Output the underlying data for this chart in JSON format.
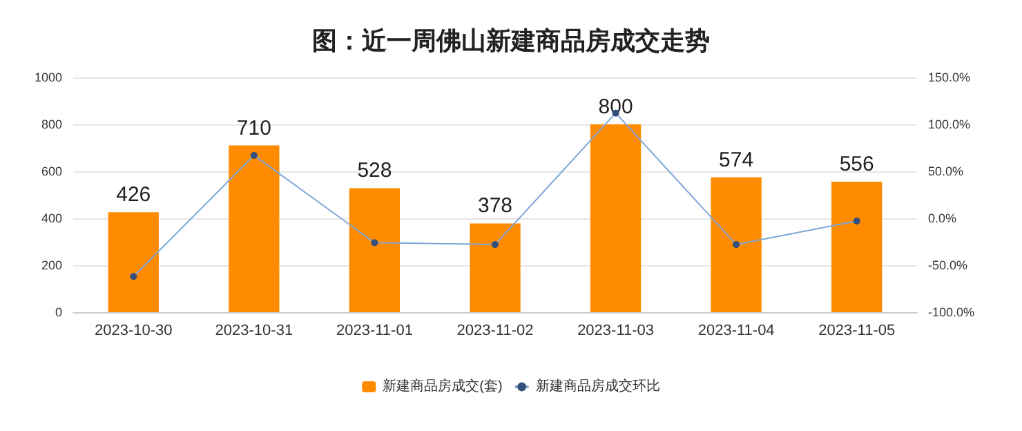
{
  "chart_data": {
    "type": "bar",
    "title": "图：近一周佛山新建商品房成交走势",
    "categories": [
      "2023-10-30",
      "2023-10-31",
      "2023-11-01",
      "2023-11-02",
      "2023-11-03",
      "2023-11-04",
      "2023-11-05"
    ],
    "series": [
      {
        "name": "新建商品房成交(套)",
        "color": "#ff8c00",
        "values": [
          426,
          710,
          528,
          378,
          800,
          574,
          556
        ],
        "data_labels": true
      },
      {
        "name": "新建商品房成交环比",
        "type": "line",
        "axis": "y2",
        "color": "#7ea6d8",
        "values": [
          -62,
          67,
          -26,
          -28,
          112,
          -28,
          -3
        ],
        "marker": "circle"
      }
    ],
    "ylim": [
      0,
      1000
    ],
    "yticks": [
      0,
      200,
      400,
      600,
      800,
      1000
    ],
    "y2lim": [
      -100,
      150
    ],
    "y2ticks": [
      {
        "value": -100,
        "label": "-100.0%"
      },
      {
        "value": -50,
        "label": "-50.0%"
      },
      {
        "value": 0,
        "label": "0.0%"
      },
      {
        "value": 50,
        "label": "50.0%"
      },
      {
        "value": 100,
        "label": "100.0%"
      },
      {
        "value": 150,
        "label": "150.0%"
      }
    ],
    "grid": "y",
    "legend": "bottom"
  }
}
